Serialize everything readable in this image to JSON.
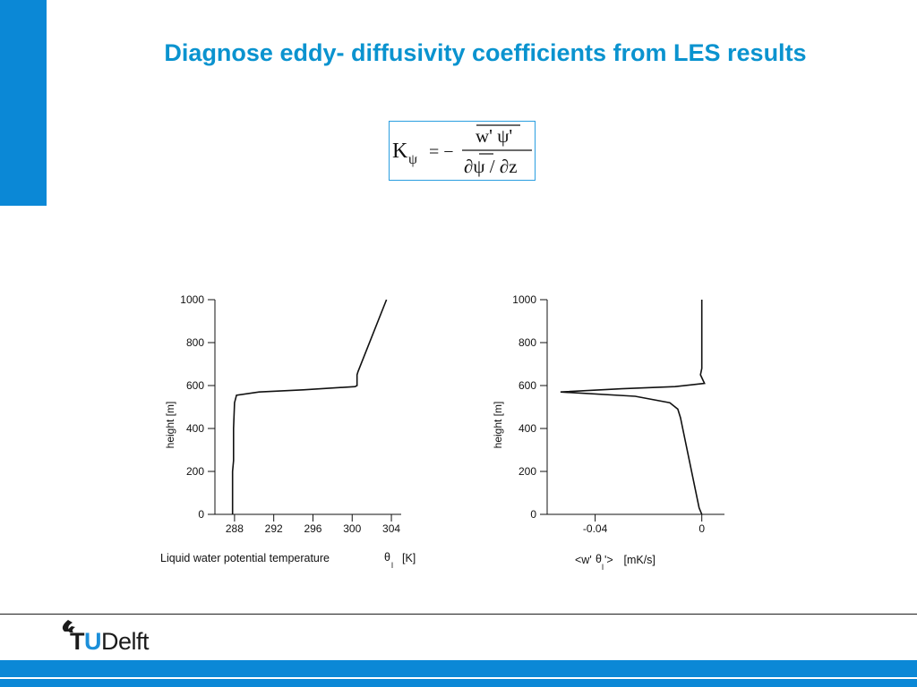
{
  "slide": {
    "title": "Diagnose eddy- diffusivity coefficients from LES results",
    "accent_color": "#0b88d6",
    "title_color": "#0a93cf"
  },
  "formula": {
    "lhs": "K",
    "lhs_subscript": "ψ",
    "equals": "= −",
    "numerator": "w' ψ'",
    "denominator": "∂ψ / ∂z"
  },
  "chart_data": [
    {
      "type": "line",
      "xlabel": "Liquid water potential temperature",
      "xlabel_symbol": "θ",
      "xlabel_subscript": "l",
      "xlabel_unit": "[K]",
      "ylabel": "height [m]",
      "xlim": [
        286,
        305
      ],
      "ylim": [
        0,
        1000
      ],
      "x_ticks": [
        288,
        292,
        296,
        300,
        304
      ],
      "x_tick_labels": [
        "288",
        "292",
        "296",
        "300",
        "304"
      ],
      "y_ticks": [
        0,
        200,
        400,
        600,
        800,
        1000
      ],
      "y_tick_labels": [
        "0",
        "200",
        "400",
        "600",
        "800",
        "1000"
      ],
      "series": [
        {
          "x": [
            287.8,
            287.8,
            287.9,
            287.9,
            288.0,
            288.2,
            290.5,
            295.0,
            300.3,
            300.5,
            300.5,
            300.6,
            303.5
          ],
          "y": [
            0,
            200,
            250,
            400,
            520,
            555,
            570,
            580,
            595,
            600,
            650,
            665,
            1000
          ]
        }
      ]
    },
    {
      "type": "line",
      "xlabel": "<w' θ'> [mK/s]",
      "xlabel_parts": [
        "<w' ",
        "θ",
        "l",
        "'>",
        " [mK/s]"
      ],
      "ylabel": "height [m]",
      "xlim": [
        -0.058,
        0.0085
      ],
      "ylim": [
        0,
        1000
      ],
      "x_ticks": [
        -0.04,
        0
      ],
      "x_tick_labels": [
        "-0.04",
        "0"
      ],
      "y_ticks": [
        0,
        200,
        400,
        600,
        800,
        1000
      ],
      "y_tick_labels": [
        "0",
        "200",
        "400",
        "600",
        "800",
        "1000"
      ],
      "series": [
        {
          "x": [
            0.0,
            -0.001,
            -0.008,
            -0.009,
            -0.012,
            -0.025,
            -0.053,
            -0.03,
            -0.01,
            0.001,
            -0.0005,
            0.0,
            0.0
          ],
          "y": [
            0,
            30,
            450,
            490,
            520,
            550,
            570,
            585,
            595,
            610,
            650,
            680,
            1000
          ]
        }
      ]
    }
  ],
  "footer": {
    "logo_t": "T",
    "logo_u": "U",
    "logo_rest": "Delft"
  }
}
